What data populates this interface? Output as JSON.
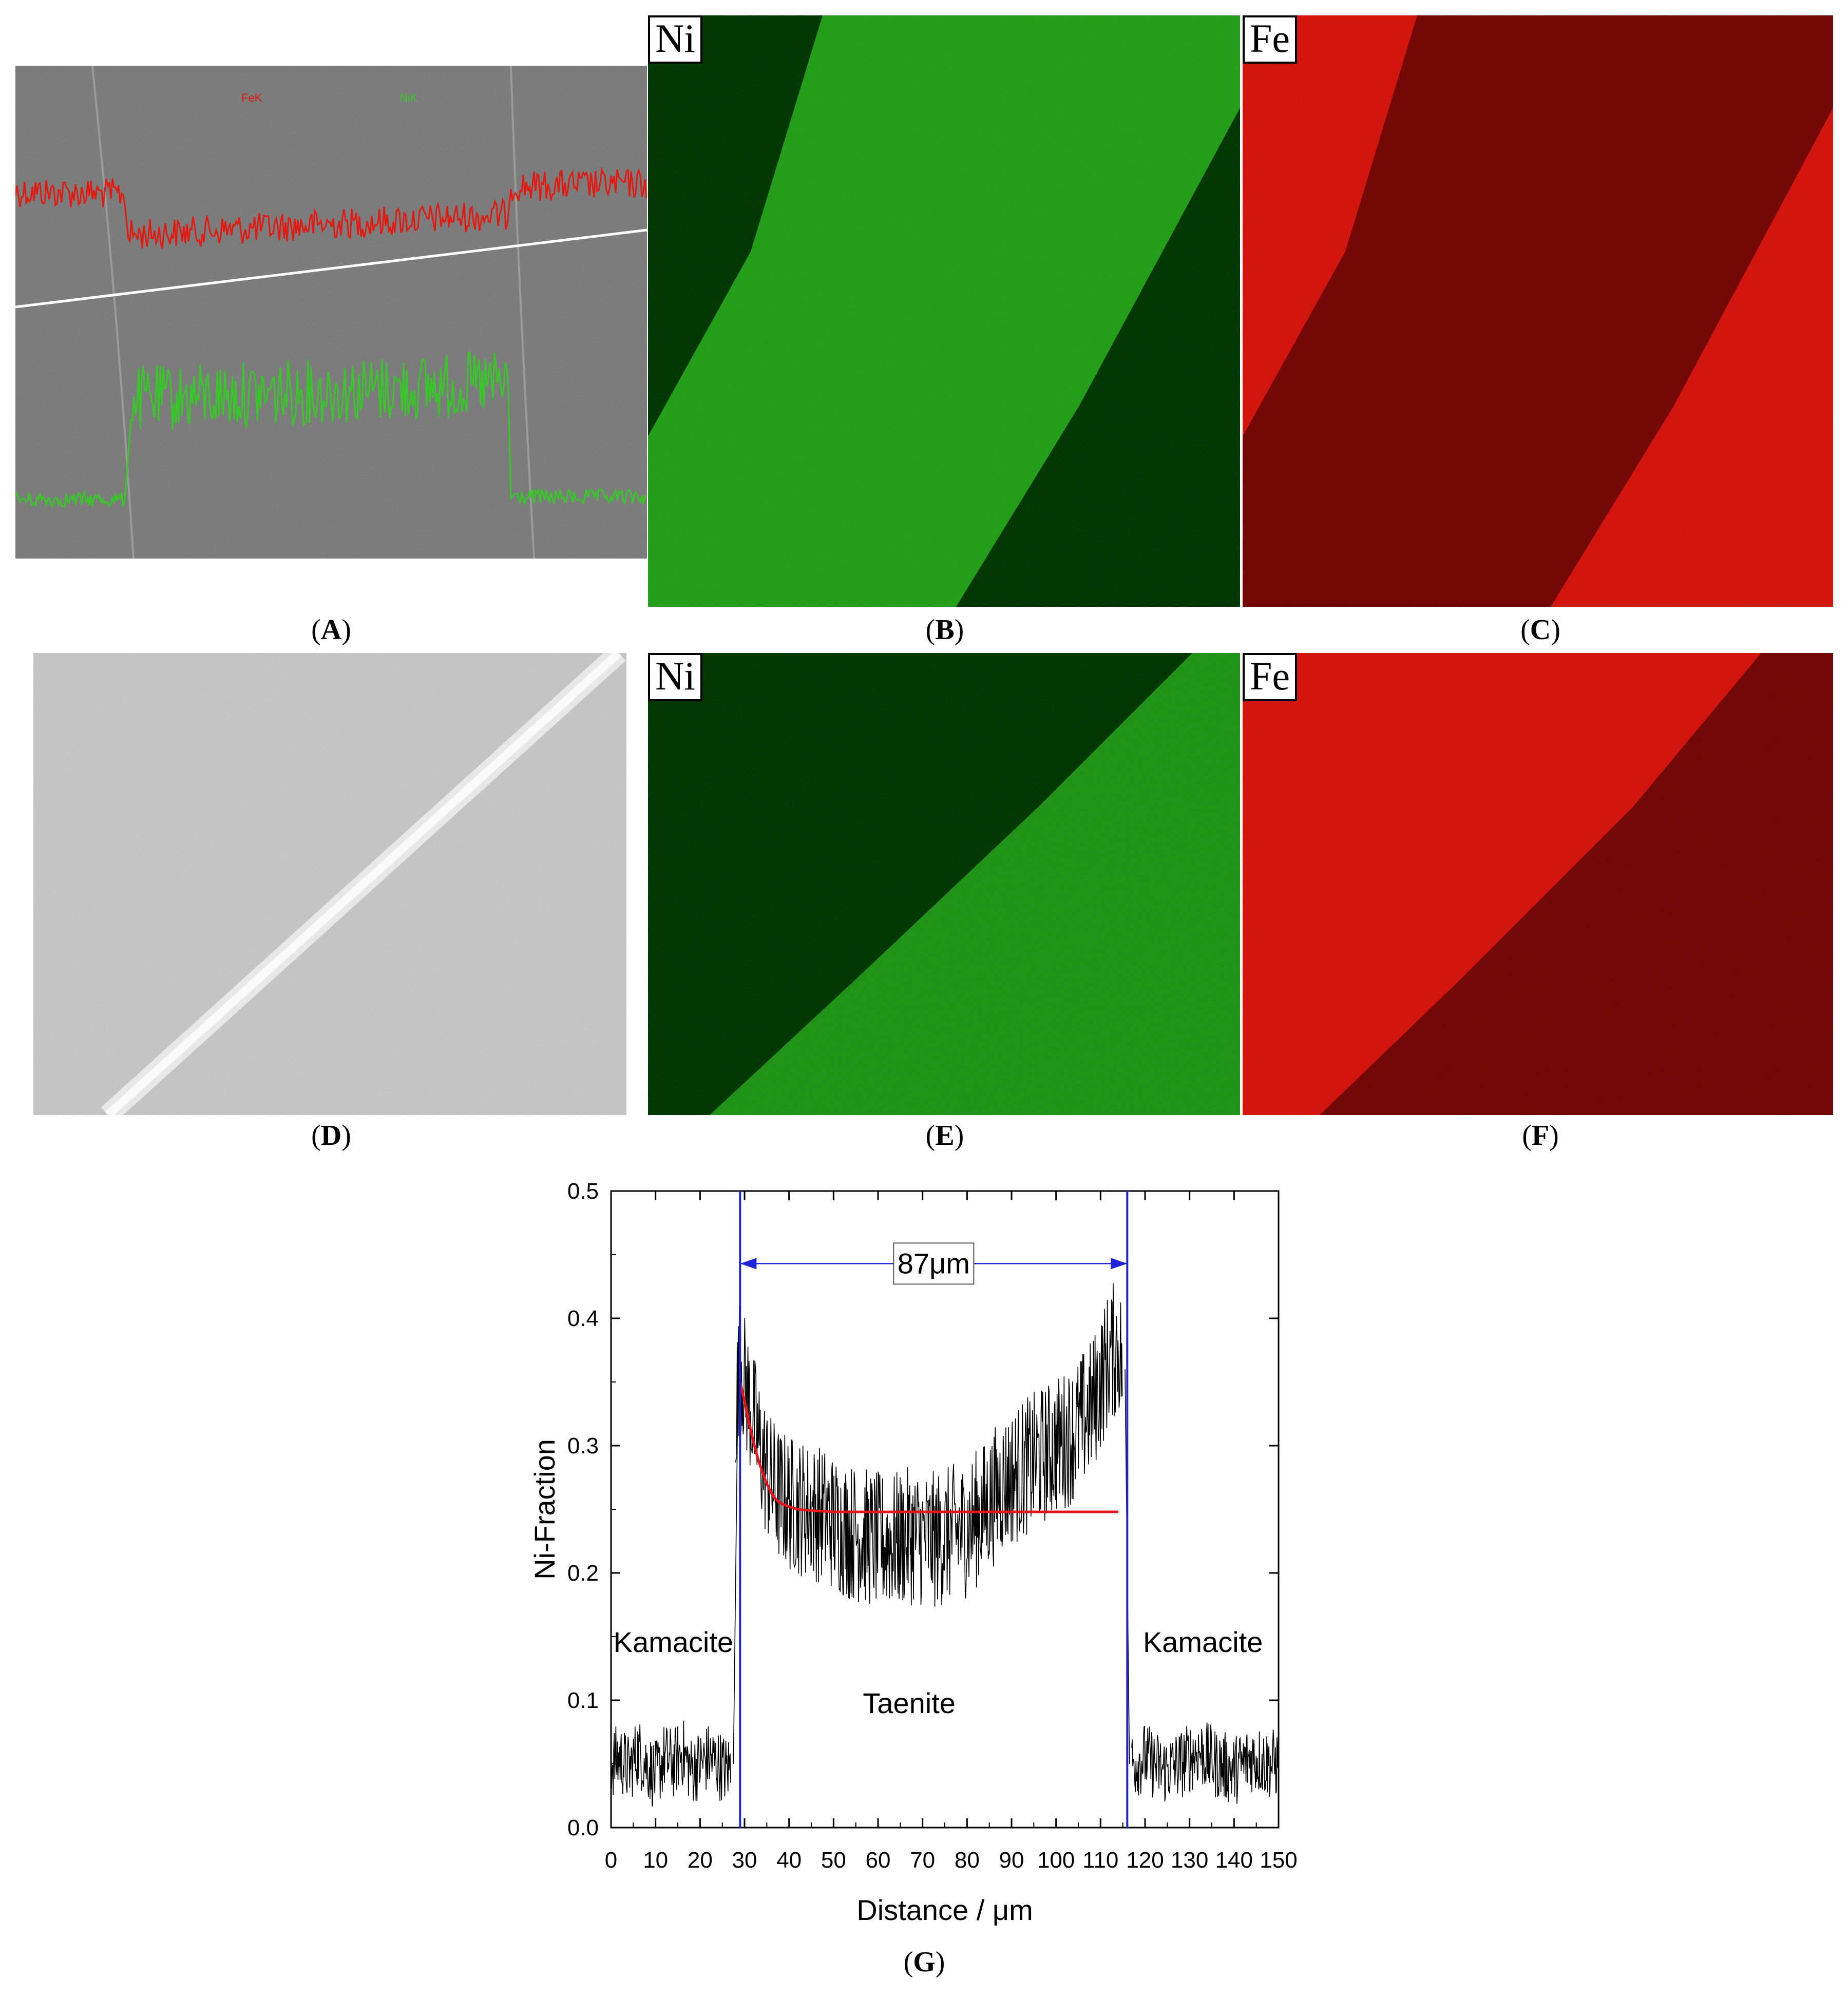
{
  "figure": {
    "captions": [
      "A",
      "B",
      "C",
      "D",
      "E",
      "F",
      "G"
    ],
    "map_labels": {
      "B": "Ni",
      "C": "Fe",
      "E": "Ni",
      "F": "Fe"
    },
    "panel_a_legend": {
      "fe": "FeK",
      "ni": "NiK"
    },
    "colors": {
      "ni": "#39c62a",
      "fe": "#e21a12",
      "boundary": "#1f24d6",
      "fit": "#e8141c",
      "linescan": "#000000"
    }
  },
  "chart_data": {
    "type": "line",
    "xlabel": "Distance / μm",
    "ylabel": "Ni-Fraction",
    "xlim": [
      0,
      150
    ],
    "ylim": [
      0,
      0.5
    ],
    "xticks": [
      0,
      10,
      20,
      30,
      40,
      50,
      60,
      70,
      80,
      90,
      100,
      110,
      120,
      130,
      140,
      150
    ],
    "xtick_labels": [
      "0",
      "10",
      "20",
      "30",
      "40",
      "50",
      "60",
      "70",
      "80",
      "90",
      "100",
      "110",
      "120",
      "130",
      "140",
      "150"
    ],
    "yticks": [
      0.0,
      0.1,
      0.2,
      0.3,
      0.4,
      0.5
    ],
    "ytick_labels": [
      "0.0",
      "0.1",
      "0.2",
      "0.3",
      "0.4",
      "0.5"
    ],
    "boundaries": [
      29,
      116
    ],
    "width_annotation": "87μm",
    "region_labels": [
      {
        "text": "Kamacite",
        "x": 14,
        "y": 0.138
      },
      {
        "text": "Taenite",
        "x": 67,
        "y": 0.09
      },
      {
        "text": "Kamacite",
        "x": 133,
        "y": 0.138
      }
    ],
    "series": [
      {
        "style": "noisy-profile",
        "segments": [
          {
            "x": [
              0,
              2,
              4,
              6,
              8,
              10,
              12,
              14,
              16,
              18,
              20,
              22,
              24,
              26,
              27
            ],
            "y": [
              0.05,
              0.055,
              0.045,
              0.06,
              0.05,
              0.04,
              0.055,
              0.05,
              0.06,
              0.045,
              0.05,
              0.055,
              0.05,
              0.045,
              0.05
            ]
          },
          {
            "x": [
              28,
              29,
              30,
              32,
              34,
              36,
              38,
              40,
              44,
              48,
              52,
              56,
              60,
              64,
              68,
              72,
              76,
              80,
              84,
              88,
              92,
              96,
              100,
              104,
              108,
              110,
              112,
              114,
              115
            ],
            "y": [
              0.33,
              0.37,
              0.35,
              0.32,
              0.29,
              0.27,
              0.26,
              0.255,
              0.25,
              0.245,
              0.235,
              0.23,
              0.225,
              0.225,
              0.23,
              0.225,
              0.23,
              0.235,
              0.25,
              0.27,
              0.28,
              0.29,
              0.3,
              0.31,
              0.33,
              0.35,
              0.37,
              0.38,
              0.36
            ]
          },
          {
            "x": [
              117,
              120,
              124,
              128,
              132,
              136,
              140,
              144,
              148,
              150
            ],
            "y": [
              0.05,
              0.055,
              0.045,
              0.05,
              0.06,
              0.05,
              0.045,
              0.055,
              0.05,
              0.05
            ]
          }
        ]
      },
      {
        "style": "fit",
        "x": [
          29,
          30,
          31,
          32,
          33,
          34,
          35,
          36,
          37,
          38,
          40,
          42,
          45,
          50,
          60,
          80,
          100,
          114
        ],
        "y": [
          0.35,
          0.335,
          0.318,
          0.303,
          0.29,
          0.279,
          0.27,
          0.263,
          0.258,
          0.255,
          0.252,
          0.25,
          0.249,
          0.248,
          0.248,
          0.248,
          0.248,
          0.248
        ]
      }
    ]
  }
}
